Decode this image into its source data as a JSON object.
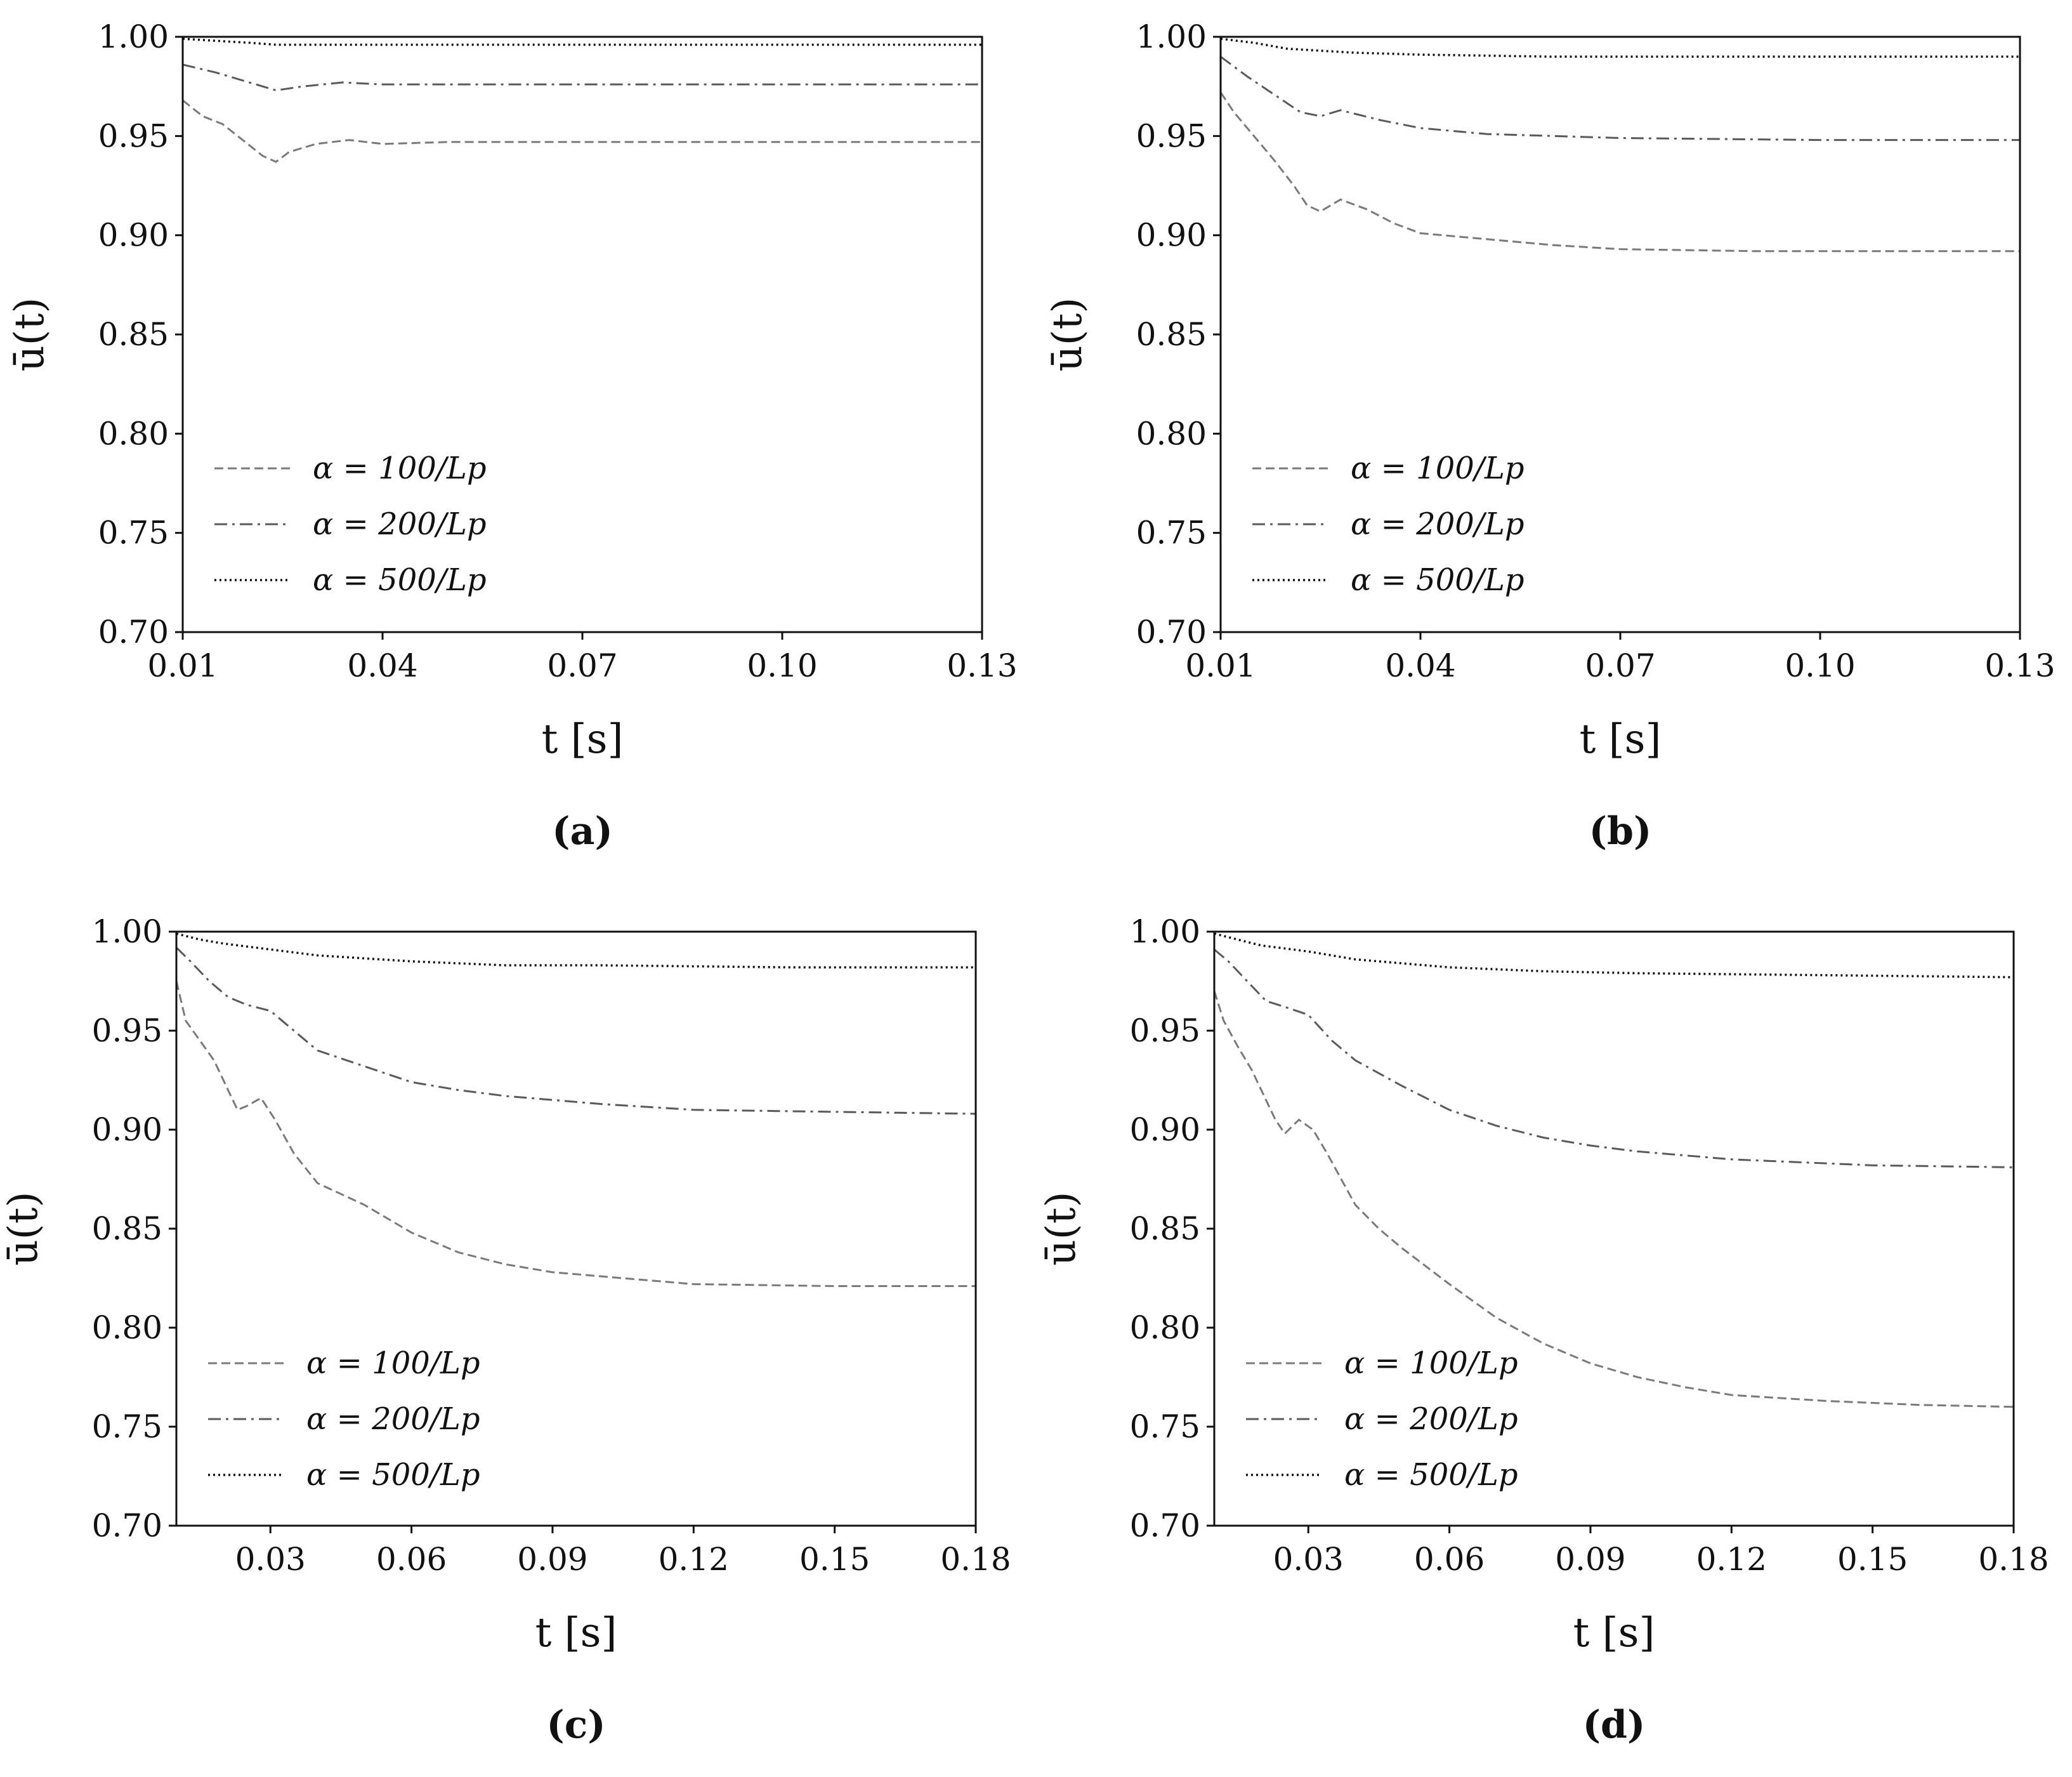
{
  "figure": {
    "captions": [
      "(a)",
      "(b)",
      "(c)",
      "(d)"
    ]
  },
  "colors": {
    "s100": "#7a7a7a",
    "s200": "#5a5a5a",
    "s500": "#111111",
    "axis": "#111111"
  },
  "chart_data": [
    {
      "type": "line",
      "caption": "(a)",
      "ylabel": "ū(t)",
      "xlabel": "t [s]",
      "xlim": [
        0.01,
        0.13
      ],
      "ylim": [
        0.7,
        1.0
      ],
      "xticks": [
        "0.01",
        "0.04",
        "0.07",
        "0.10",
        "0.13"
      ],
      "xtick_values": [
        0.01,
        0.04,
        0.07,
        0.1,
        0.13
      ],
      "yticks": [
        "0.70",
        "0.75",
        "0.80",
        "0.85",
        "0.90",
        "0.95",
        "1.00"
      ],
      "ytick_values": [
        0.7,
        0.75,
        0.8,
        0.85,
        0.9,
        0.95,
        1.0
      ],
      "legend": "left",
      "series": [
        {
          "name": "α = 100/Lp",
          "key": "s100",
          "style": "dashed",
          "x": [
            0.01,
            0.013,
            0.016,
            0.019,
            0.022,
            0.024,
            0.026,
            0.03,
            0.035,
            0.04,
            0.05,
            0.07,
            0.1,
            0.13
          ],
          "y": [
            0.968,
            0.96,
            0.956,
            0.948,
            0.94,
            0.937,
            0.942,
            0.946,
            0.948,
            0.946,
            0.947,
            0.947,
            0.947,
            0.947
          ]
        },
        {
          "name": "α = 200/Lp",
          "key": "s200",
          "style": "dashdot",
          "x": [
            0.01,
            0.015,
            0.02,
            0.024,
            0.028,
            0.034,
            0.04,
            0.06,
            0.1,
            0.13
          ],
          "y": [
            0.986,
            0.982,
            0.977,
            0.973,
            0.975,
            0.977,
            0.976,
            0.976,
            0.976,
            0.976
          ]
        },
        {
          "name": "α = 500/Lp",
          "key": "s500",
          "style": "dotted",
          "x": [
            0.01,
            0.015,
            0.02,
            0.024,
            0.03,
            0.05,
            0.13
          ],
          "y": [
            0.999,
            0.998,
            0.997,
            0.996,
            0.996,
            0.996,
            0.996
          ]
        }
      ]
    },
    {
      "type": "line",
      "caption": "(b)",
      "ylabel": "ū(t)",
      "xlabel": "t [s]",
      "xlim": [
        0.01,
        0.13
      ],
      "ylim": [
        0.7,
        1.0
      ],
      "xticks": [
        "0.01",
        "0.04",
        "0.07",
        "0.10",
        "0.13"
      ],
      "xtick_values": [
        0.01,
        0.04,
        0.07,
        0.1,
        0.13
      ],
      "yticks": [
        "0.70",
        "0.75",
        "0.80",
        "0.85",
        "0.90",
        "0.95",
        "1.00"
      ],
      "ytick_values": [
        0.7,
        0.75,
        0.8,
        0.85,
        0.9,
        0.95,
        1.0
      ],
      "legend": "left",
      "series": [
        {
          "name": "α = 100/Lp",
          "key": "s100",
          "style": "dashed",
          "x": [
            0.01,
            0.012,
            0.015,
            0.018,
            0.021,
            0.023,
            0.025,
            0.028,
            0.032,
            0.036,
            0.04,
            0.05,
            0.06,
            0.07,
            0.09,
            0.13
          ],
          "y": [
            0.972,
            0.962,
            0.95,
            0.938,
            0.925,
            0.915,
            0.912,
            0.918,
            0.913,
            0.906,
            0.901,
            0.898,
            0.895,
            0.893,
            0.892,
            0.892
          ]
        },
        {
          "name": "α = 200/Lp",
          "key": "s200",
          "style": "dashdot",
          "x": [
            0.01,
            0.014,
            0.018,
            0.022,
            0.025,
            0.028,
            0.034,
            0.04,
            0.05,
            0.07,
            0.1,
            0.13
          ],
          "y": [
            0.99,
            0.98,
            0.971,
            0.962,
            0.96,
            0.963,
            0.958,
            0.954,
            0.951,
            0.949,
            0.948,
            0.948
          ]
        },
        {
          "name": "α = 500/Lp",
          "key": "s500",
          "style": "dotted",
          "x": [
            0.01,
            0.015,
            0.02,
            0.025,
            0.03,
            0.04,
            0.06,
            0.13
          ],
          "y": [
            0.999,
            0.997,
            0.994,
            0.993,
            0.992,
            0.991,
            0.99,
            0.99
          ]
        }
      ]
    },
    {
      "type": "line",
      "caption": "(c)",
      "ylabel": "ū(t)",
      "xlabel": "t [s]",
      "xlim": [
        0.01,
        0.18
      ],
      "ylim": [
        0.7,
        1.0
      ],
      "xticks": [
        "0.03",
        "0.06",
        "0.09",
        "0.12",
        "0.15",
        "0.18"
      ],
      "xtick_values": [
        0.03,
        0.06,
        0.09,
        0.12,
        0.15,
        0.18
      ],
      "yticks": [
        "0.70",
        "0.75",
        "0.80",
        "0.85",
        "0.90",
        "0.95",
        "1.00"
      ],
      "ytick_values": [
        0.7,
        0.75,
        0.8,
        0.85,
        0.9,
        0.95,
        1.0
      ],
      "legend": "left",
      "series": [
        {
          "name": "α = 100/Lp",
          "key": "s100",
          "style": "dashed",
          "x": [
            0.01,
            0.012,
            0.015,
            0.018,
            0.021,
            0.023,
            0.025,
            0.028,
            0.031,
            0.035,
            0.04,
            0.05,
            0.06,
            0.07,
            0.08,
            0.09,
            0.1,
            0.12,
            0.15,
            0.18
          ],
          "y": [
            0.975,
            0.955,
            0.945,
            0.935,
            0.92,
            0.91,
            0.912,
            0.916,
            0.905,
            0.888,
            0.873,
            0.862,
            0.848,
            0.838,
            0.832,
            0.828,
            0.826,
            0.822,
            0.821,
            0.821
          ]
        },
        {
          "name": "α = 200/Lp",
          "key": "s200",
          "style": "dashdot",
          "x": [
            0.01,
            0.013,
            0.017,
            0.021,
            0.025,
            0.03,
            0.035,
            0.04,
            0.05,
            0.06,
            0.07,
            0.08,
            0.1,
            0.12,
            0.15,
            0.18
          ],
          "y": [
            0.992,
            0.985,
            0.975,
            0.967,
            0.963,
            0.96,
            0.95,
            0.94,
            0.932,
            0.924,
            0.92,
            0.917,
            0.913,
            0.91,
            0.909,
            0.908
          ]
        },
        {
          "name": "α = 500/Lp",
          "key": "s500",
          "style": "dotted",
          "x": [
            0.01,
            0.015,
            0.02,
            0.03,
            0.04,
            0.06,
            0.08,
            0.1,
            0.14,
            0.18
          ],
          "y": [
            0.999,
            0.996,
            0.994,
            0.991,
            0.988,
            0.985,
            0.983,
            0.983,
            0.982,
            0.982
          ]
        }
      ]
    },
    {
      "type": "line",
      "caption": "(d)",
      "ylabel": "ū(t)",
      "xlabel": "t [s]",
      "xlim": [
        0.01,
        0.18
      ],
      "ylim": [
        0.7,
        1.0
      ],
      "xticks": [
        "0.03",
        "0.06",
        "0.09",
        "0.12",
        "0.15",
        "0.18"
      ],
      "xtick_values": [
        0.03,
        0.06,
        0.09,
        0.12,
        0.15,
        0.18
      ],
      "yticks": [
        "0.70",
        "0.75",
        "0.80",
        "0.85",
        "0.90",
        "0.95",
        "1.00"
      ],
      "ytick_values": [
        0.7,
        0.75,
        0.8,
        0.85,
        0.9,
        0.95,
        1.0
      ],
      "legend": "left",
      "series": [
        {
          "name": "α = 100/Lp",
          "key": "s100",
          "style": "dashed",
          "x": [
            0.01,
            0.012,
            0.015,
            0.018,
            0.021,
            0.023,
            0.025,
            0.028,
            0.031,
            0.034,
            0.037,
            0.04,
            0.045,
            0.05,
            0.06,
            0.07,
            0.08,
            0.09,
            0.1,
            0.11,
            0.12,
            0.14,
            0.16,
            0.18
          ],
          "y": [
            0.97,
            0.955,
            0.942,
            0.93,
            0.915,
            0.905,
            0.898,
            0.905,
            0.9,
            0.888,
            0.875,
            0.862,
            0.85,
            0.84,
            0.822,
            0.805,
            0.792,
            0.782,
            0.775,
            0.77,
            0.766,
            0.763,
            0.761,
            0.76
          ]
        },
        {
          "name": "α = 200/Lp",
          "key": "s200",
          "style": "dashdot",
          "x": [
            0.01,
            0.013,
            0.017,
            0.021,
            0.025,
            0.03,
            0.035,
            0.04,
            0.05,
            0.06,
            0.07,
            0.08,
            0.09,
            0.1,
            0.12,
            0.15,
            0.18
          ],
          "y": [
            0.991,
            0.985,
            0.975,
            0.965,
            0.962,
            0.958,
            0.945,
            0.935,
            0.922,
            0.91,
            0.902,
            0.896,
            0.892,
            0.889,
            0.885,
            0.882,
            0.881
          ]
        },
        {
          "name": "α = 500/Lp",
          "key": "s500",
          "style": "dotted",
          "x": [
            0.01,
            0.015,
            0.02,
            0.03,
            0.04,
            0.06,
            0.08,
            0.1,
            0.14,
            0.18
          ],
          "y": [
            0.999,
            0.996,
            0.993,
            0.99,
            0.986,
            0.982,
            0.98,
            0.979,
            0.978,
            0.977
          ]
        }
      ]
    }
  ]
}
